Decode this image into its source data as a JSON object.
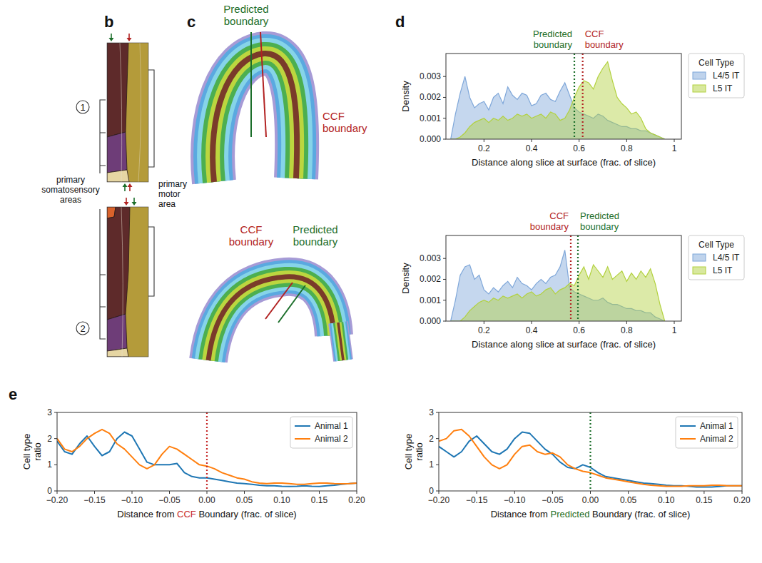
{
  "figure": {
    "panel_labels": [
      "b",
      "c",
      "d",
      "e"
    ],
    "b": {
      "slice_labels": [
        "1",
        "2"
      ],
      "left_label": "primary somatosensory areas",
      "right_label": "primary motor area"
    },
    "c": {
      "top_labels": [
        "Predicted boundary",
        "CCF boundary"
      ],
      "bottom_labels": [
        "CCF boundary",
        "Predicted boundary"
      ]
    }
  },
  "chart_data": [
    {
      "type": "area",
      "xlabel": "Distance along slice at surface (frac. of slice)",
      "ylabel": "Density",
      "x": [
        0.06,
        0.08,
        0.1,
        0.12,
        0.14,
        0.16,
        0.18,
        0.2,
        0.22,
        0.24,
        0.26,
        0.28,
        0.3,
        0.32,
        0.34,
        0.36,
        0.38,
        0.4,
        0.42,
        0.44,
        0.46,
        0.48,
        0.5,
        0.52,
        0.54,
        0.56,
        0.58,
        0.6,
        0.62,
        0.64,
        0.66,
        0.68,
        0.7,
        0.72,
        0.74,
        0.76,
        0.78,
        0.8,
        0.82,
        0.84,
        0.86,
        0.88,
        0.9,
        0.92,
        0.94,
        0.96
      ],
      "series": [
        {
          "name": "L4/5 IT",
          "color": "#7fa7d9",
          "values": [
            0,
            0.0012,
            0.0022,
            0.003,
            0.002,
            0.0015,
            0.0017,
            0.0018,
            0.0014,
            0.002,
            0.0022,
            0.0017,
            0.0025,
            0.0021,
            0.0019,
            0.0022,
            0.0021,
            0.0016,
            0.0017,
            0.0021,
            0.0022,
            0.0019,
            0.0018,
            0.0023,
            0.0027,
            0.0021,
            0.0015,
            0.0013,
            0.0012,
            0.0011,
            0.001,
            0.0012,
            0.0011,
            0.0009,
            0.0008,
            0.0007,
            0.0006,
            0.0006,
            0.0005,
            0.0005,
            0.0004,
            0.0004,
            0.0003,
            0.0002,
            0.0001,
            0
          ]
        },
        {
          "name": "L5 IT",
          "color": "#b2d13e",
          "values": [
            0,
            0,
            0.0001,
            0.0003,
            0.0006,
            0.0008,
            0.0009,
            0.001,
            0.0008,
            0.001,
            0.0009,
            0.0011,
            0.0009,
            0.001,
            0.0012,
            0.0011,
            0.0012,
            0.001,
            0.0011,
            0.0012,
            0.001,
            0.0013,
            0.0012,
            0.0009,
            0.001,
            0.0014,
            0.002,
            0.0025,
            0.0028,
            0.0027,
            0.0024,
            0.003,
            0.0034,
            0.0037,
            0.0028,
            0.002,
            0.0017,
            0.0015,
            0.0012,
            0.0013,
            0.001,
            0.0005,
            0.0003,
            0.0002,
            0.0001,
            0
          ]
        }
      ],
      "xlim": [
        0.04,
        1.03
      ],
      "xticks": [
        0.2,
        0.4,
        0.6,
        0.8,
        1
      ],
      "ylim": [
        0,
        0.0041
      ],
      "yticks": [
        {
          "value": 0,
          "label": "0.000"
        },
        0.001,
        0.002,
        0.003
      ],
      "legend": "right",
      "legend_title": "Cell Type",
      "vlines": [
        {
          "x": 0.58,
          "label": "Predicted boundary",
          "color": "#1b6e2a"
        },
        {
          "x": 0.615,
          "label": "CCF boundary",
          "color": "#b22222"
        }
      ]
    },
    {
      "type": "area",
      "xlabel": "Distance along slice at surface (frac. of slice)",
      "ylabel": "Density",
      "x": [
        0.06,
        0.08,
        0.1,
        0.12,
        0.14,
        0.16,
        0.18,
        0.2,
        0.22,
        0.24,
        0.26,
        0.28,
        0.3,
        0.32,
        0.34,
        0.36,
        0.38,
        0.4,
        0.42,
        0.44,
        0.46,
        0.48,
        0.5,
        0.52,
        0.54,
        0.56,
        0.58,
        0.6,
        0.62,
        0.64,
        0.66,
        0.68,
        0.7,
        0.72,
        0.74,
        0.76,
        0.78,
        0.8,
        0.82,
        0.84,
        0.86,
        0.88,
        0.9,
        0.92,
        0.94,
        0.96
      ],
      "series": [
        {
          "name": "L4/5 IT",
          "color": "#7fa7d9",
          "values": [
            0,
            0.001,
            0.0022,
            0.0026,
            0.0027,
            0.002,
            0.0022,
            0.0015,
            0.0013,
            0.0016,
            0.0014,
            0.0017,
            0.0019,
            0.0016,
            0.0021,
            0.0018,
            0.0017,
            0.0015,
            0.0018,
            0.002,
            0.0018,
            0.0021,
            0.0022,
            0.0026,
            0.0034,
            0.0016,
            0.0014,
            0.0013,
            0.0012,
            0.0011,
            0.001,
            0.001,
            0.0011,
            0.0009,
            0.0008,
            0.0008,
            0.0007,
            0.0006,
            0.0006,
            0.0005,
            0.0005,
            0.0004,
            0.0004,
            0.0002,
            0.0001,
            0
          ]
        },
        {
          "name": "L5 IT",
          "color": "#b2d13e",
          "values": [
            0,
            0,
            0,
            0.0002,
            0.0005,
            0.0007,
            0.0009,
            0.001,
            0.0009,
            0.0011,
            0.001,
            0.0012,
            0.0011,
            0.0012,
            0.0013,
            0.0011,
            0.0013,
            0.0014,
            0.0012,
            0.0013,
            0.0015,
            0.0016,
            0.0013,
            0.0015,
            0.0016,
            0.0018,
            0.0017,
            0.0022,
            0.0026,
            0.002,
            0.0027,
            0.0024,
            0.0021,
            0.0026,
            0.002,
            0.0022,
            0.0024,
            0.0019,
            0.0023,
            0.002,
            0.0024,
            0.0021,
            0.0025,
            0.0018,
            0.0008,
            0
          ]
        }
      ],
      "xlim": [
        0.04,
        1.03
      ],
      "xticks": [
        0.2,
        0.4,
        0.6,
        0.8,
        1
      ],
      "ylim": [
        0,
        0.0041
      ],
      "yticks": [
        {
          "value": 0,
          "label": "0.000"
        },
        0.001,
        0.002,
        0.003
      ],
      "legend": "right",
      "legend_title": "Cell Type",
      "vlines": [
        {
          "x": 0.565,
          "label": "CCF boundary",
          "color": "#b22222"
        },
        {
          "x": 0.595,
          "label": "Predicted boundary",
          "color": "#1b6e2a"
        }
      ]
    },
    {
      "type": "line",
      "xlabel": "Distance from CCF Boundary (frac. of slice)",
      "xlabel_highlight": "CCF",
      "ylabel": "Cell type ratio",
      "x": [
        -0.2,
        -0.19,
        -0.18,
        -0.17,
        -0.16,
        -0.15,
        -0.14,
        -0.13,
        -0.12,
        -0.11,
        -0.1,
        -0.09,
        -0.08,
        -0.07,
        -0.06,
        -0.05,
        -0.04,
        -0.03,
        -0.02,
        -0.01,
        0,
        0.01,
        0.02,
        0.03,
        0.04,
        0.05,
        0.06,
        0.07,
        0.08,
        0.09,
        0.1,
        0.11,
        0.12,
        0.13,
        0.14,
        0.15,
        0.16,
        0.17,
        0.18,
        0.19,
        0.2
      ],
      "series": [
        {
          "name": "Animal 1",
          "color": "#1f77b4",
          "values": [
            1.9,
            1.5,
            1.4,
            1.8,
            2.1,
            1.7,
            1.35,
            1.5,
            2.0,
            2.25,
            2.1,
            1.6,
            1.1,
            1.0,
            1.0,
            1.0,
            1.05,
            0.7,
            0.55,
            0.5,
            0.5,
            0.45,
            0.4,
            0.35,
            0.3,
            0.28,
            0.25,
            0.22,
            0.2,
            0.2,
            0.18,
            0.17,
            0.18,
            0.2,
            0.18,
            0.17,
            0.2,
            0.22,
            0.25,
            0.28,
            0.3
          ]
        },
        {
          "name": "Animal 2",
          "color": "#ff7f0e",
          "values": [
            2.0,
            1.6,
            1.5,
            1.7,
            2.0,
            2.2,
            2.35,
            2.2,
            1.8,
            1.6,
            1.3,
            1.0,
            0.85,
            1.0,
            1.4,
            1.7,
            1.6,
            1.4,
            1.2,
            1.0,
            0.95,
            0.85,
            0.7,
            0.6,
            0.5,
            0.45,
            0.35,
            0.3,
            0.28,
            0.3,
            0.3,
            0.28,
            0.25,
            0.25,
            0.28,
            0.3,
            0.3,
            0.28,
            0.27,
            0.28,
            0.3
          ]
        }
      ],
      "xlim": [
        -0.2,
        0.2
      ],
      "xticks": [
        {
          "value": -0.2,
          "label": "−0.20"
        },
        {
          "value": -0.15,
          "label": "−0.15"
        },
        {
          "value": -0.1,
          "label": "−0.10"
        },
        {
          "value": -0.05,
          "label": "−0.05"
        },
        {
          "value": 0,
          "label": "0.00"
        },
        0.05,
        {
          "value": 0.1,
          "label": "0.10"
        },
        0.15,
        {
          "value": 0.2,
          "label": "0.20"
        }
      ],
      "ylim": [
        0,
        3
      ],
      "yticks": [
        0,
        1,
        2,
        3
      ],
      "legend": "upper right",
      "vlines": [
        {
          "x": 0,
          "color": "#c62828"
        }
      ]
    },
    {
      "type": "line",
      "xlabel": "Distance from Predicted Boundary (frac. of slice)",
      "xlabel_highlight": "Predicted",
      "ylabel": "Cell type ratio",
      "x": [
        -0.2,
        -0.19,
        -0.18,
        -0.17,
        -0.16,
        -0.15,
        -0.14,
        -0.13,
        -0.12,
        -0.11,
        -0.1,
        -0.09,
        -0.08,
        -0.07,
        -0.06,
        -0.05,
        -0.04,
        -0.03,
        -0.02,
        -0.01,
        0,
        0.01,
        0.02,
        0.03,
        0.04,
        0.05,
        0.06,
        0.07,
        0.08,
        0.09,
        0.1,
        0.11,
        0.12,
        0.13,
        0.14,
        0.15,
        0.16,
        0.17,
        0.18,
        0.19,
        0.2
      ],
      "series": [
        {
          "name": "Animal 1",
          "color": "#1f77b4",
          "values": [
            1.7,
            1.5,
            1.3,
            1.5,
            1.9,
            2.1,
            1.8,
            1.5,
            1.4,
            1.6,
            2.0,
            2.25,
            2.2,
            1.9,
            1.6,
            1.4,
            1.1,
            0.9,
            0.85,
            1.0,
            0.9,
            0.7,
            0.55,
            0.5,
            0.45,
            0.4,
            0.35,
            0.3,
            0.28,
            0.25,
            0.22,
            0.2,
            0.2,
            0.18,
            0.15,
            0.15,
            0.15,
            0.17,
            0.2,
            0.2,
            0.2
          ]
        },
        {
          "name": "Animal 2",
          "color": "#ff7f0e",
          "values": [
            1.9,
            2.0,
            2.3,
            2.35,
            2.1,
            1.7,
            1.3,
            1.0,
            0.85,
            1.0,
            1.4,
            1.7,
            1.75,
            1.5,
            1.4,
            1.45,
            1.3,
            1.0,
            0.85,
            0.75,
            0.7,
            0.6,
            0.5,
            0.45,
            0.4,
            0.35,
            0.3,
            0.25,
            0.22,
            0.2,
            0.18,
            0.18,
            0.18,
            0.2,
            0.2,
            0.2,
            0.22,
            0.22,
            0.2,
            0.2,
            0.2
          ]
        }
      ],
      "xlim": [
        -0.2,
        0.2
      ],
      "xticks": [
        {
          "value": -0.2,
          "label": "−0.20"
        },
        {
          "value": -0.15,
          "label": "−0.15"
        },
        {
          "value": -0.1,
          "label": "−0.10"
        },
        {
          "value": -0.05,
          "label": "−0.05"
        },
        {
          "value": 0,
          "label": "0.00"
        },
        0.05,
        {
          "value": 0.1,
          "label": "0.10"
        },
        0.15,
        {
          "value": 0.2,
          "label": "0.20"
        }
      ],
      "ylim": [
        0,
        3
      ],
      "yticks": [
        0,
        1,
        2,
        3
      ],
      "legend": "upper right",
      "vlines": [
        {
          "x": 0,
          "color": "#1b6e2a"
        }
      ]
    }
  ]
}
